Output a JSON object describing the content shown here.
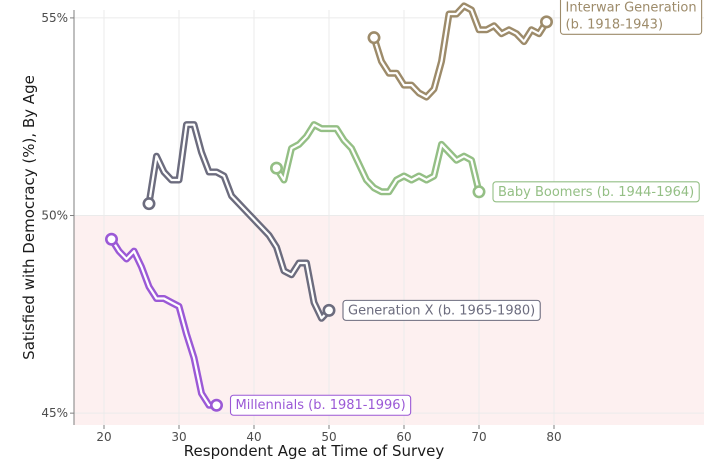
{
  "chart_data": {
    "type": "line",
    "xlabel": "Respondent Age at Time of Survey",
    "ylabel": "Satisfied with Democracy (%), By Age",
    "xlim": [
      16,
      100
    ],
    "ylim": [
      44.7,
      55.2
    ],
    "x_ticks": [
      20,
      30,
      40,
      50,
      60,
      70,
      80
    ],
    "x_tick_labels": [
      "20",
      "30",
      "40",
      "50",
      "60",
      "70",
      "80"
    ],
    "y_ticks": [
      45,
      50,
      55
    ],
    "y_tick_labels": [
      "45%",
      "50%",
      "55%"
    ],
    "grid": true,
    "shaded_region": {
      "y_from": 44.7,
      "y_to": 50,
      "color": "#fdf0f0"
    },
    "series": [
      {
        "name": "Interwar Generation (b. 1918-1943)",
        "label_lines": [
          "Interwar Generation",
          " (b. 1918-1943)"
        ],
        "color": "#9d8b6a",
        "x": [
          56,
          57,
          58,
          59,
          60,
          61,
          62,
          63,
          64,
          65,
          66,
          67,
          68,
          69,
          70,
          71,
          72,
          73,
          74,
          75,
          76,
          77,
          78,
          79
        ],
        "y": [
          54.5,
          53.9,
          53.6,
          53.6,
          53.3,
          53.3,
          53.1,
          53.0,
          53.2,
          53.9,
          55.1,
          55.1,
          55.3,
          55.2,
          54.7,
          54.7,
          54.8,
          54.6,
          54.7,
          54.6,
          54.4,
          54.7,
          54.6,
          54.9
        ]
      },
      {
        "name": "Baby Boomers (b. 1944-1964)",
        "label_lines": [
          "Baby Boomers (b. 1944-1964)"
        ],
        "color": "#94bf85",
        "x": [
          43,
          44,
          45,
          46,
          47,
          48,
          49,
          50,
          51,
          52,
          53,
          54,
          55,
          56,
          57,
          58,
          59,
          60,
          61,
          62,
          63,
          64,
          65,
          66,
          67,
          68,
          69,
          70
        ],
        "y": [
          51.2,
          50.9,
          51.7,
          51.8,
          52.0,
          52.3,
          52.2,
          52.2,
          52.2,
          51.9,
          51.7,
          51.3,
          50.9,
          50.7,
          50.6,
          50.6,
          50.9,
          51.0,
          50.9,
          51.0,
          50.9,
          51.0,
          51.8,
          51.6,
          51.4,
          51.5,
          51.4,
          50.6
        ]
      },
      {
        "name": "Generation X (b. 1965-1980)",
        "label_lines": [
          "Generation X (b. 1965-1980)"
        ],
        "color": "#6c6c7e",
        "x": [
          26,
          27,
          28,
          29,
          30,
          31,
          32,
          33,
          34,
          35,
          36,
          37,
          38,
          39,
          40,
          41,
          42,
          43,
          44,
          45,
          46,
          47,
          48,
          49,
          50
        ],
        "y": [
          50.3,
          51.5,
          51.1,
          50.9,
          50.9,
          52.3,
          52.3,
          51.6,
          51.1,
          51.1,
          51.0,
          50.5,
          50.3,
          50.1,
          49.9,
          49.7,
          49.5,
          49.2,
          48.6,
          48.5,
          48.8,
          48.8,
          47.8,
          47.4,
          47.6
        ]
      },
      {
        "name": "Millennials (b. 1981-1996)",
        "label_lines": [
          "Millennials (b. 1981-1996)"
        ],
        "color": "#9b59d6",
        "x": [
          21,
          22,
          23,
          24,
          25,
          26,
          27,
          28,
          29,
          30,
          31,
          32,
          33,
          34,
          35
        ],
        "y": [
          49.4,
          49.1,
          48.9,
          49.1,
          48.7,
          48.2,
          47.9,
          47.9,
          47.8,
          47.7,
          47.0,
          46.4,
          45.5,
          45.2,
          45.2
        ]
      }
    ]
  }
}
